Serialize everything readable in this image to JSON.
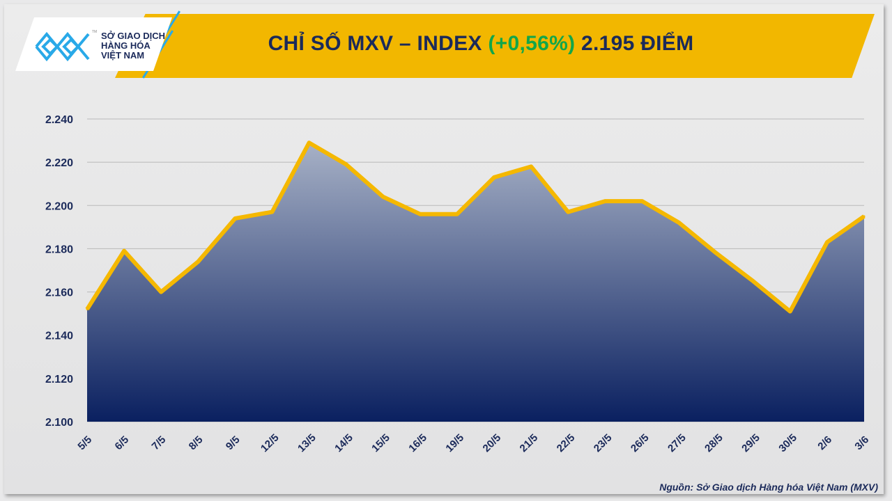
{
  "header": {
    "title_prefix": "CHỈ SỐ MXV – INDEX",
    "title_change": "(+0,56%)",
    "title_suffix": "2.195 ĐIỂM",
    "logo_text": [
      "SỞ GIAO DỊCH",
      "HÀNG HÓA",
      "VIỆT NAM"
    ],
    "logo_mark": "TM"
  },
  "colors": {
    "banner": "#f2b700",
    "line": "#f5b800",
    "area_top": "#a7b1c6",
    "area_bottom": "#0a2060",
    "change_positive": "#12a64a",
    "title": "#1b2a5a"
  },
  "chart_data": {
    "type": "area",
    "title": "CHỈ SỐ MXV – INDEX (+0,56%) 2.195 ĐIỂM",
    "categories": [
      "5/5",
      "6/5",
      "7/5",
      "8/5",
      "9/5",
      "12/5",
      "13/5",
      "14/5",
      "15/5",
      "16/5",
      "19/5",
      "20/5",
      "21/5",
      "22/5",
      "23/5",
      "26/5",
      "27/5",
      "28/5",
      "29/5",
      "30/5",
      "2/6",
      "3/6"
    ],
    "values": [
      2152,
      2179,
      2160,
      2174,
      2194,
      2197,
      2229,
      2219,
      2204,
      2196,
      2196,
      2213,
      2218,
      2197,
      2202,
      2202,
      2192,
      2178,
      2165,
      2151,
      2183,
      2195
    ],
    "ylim": [
      2100,
      2240
    ],
    "yticks": [
      2100,
      2120,
      2140,
      2160,
      2180,
      2200,
      2220,
      2240
    ],
    "ytick_labels": [
      "2.100",
      "2.120",
      "2.140",
      "2.160",
      "2.180",
      "2.200",
      "2.220",
      "2.240"
    ],
    "grid": true,
    "legend": "none"
  },
  "footer": {
    "source": "Nguồn: Sở Giao dịch Hàng hóa Việt Nam (MXV)"
  }
}
